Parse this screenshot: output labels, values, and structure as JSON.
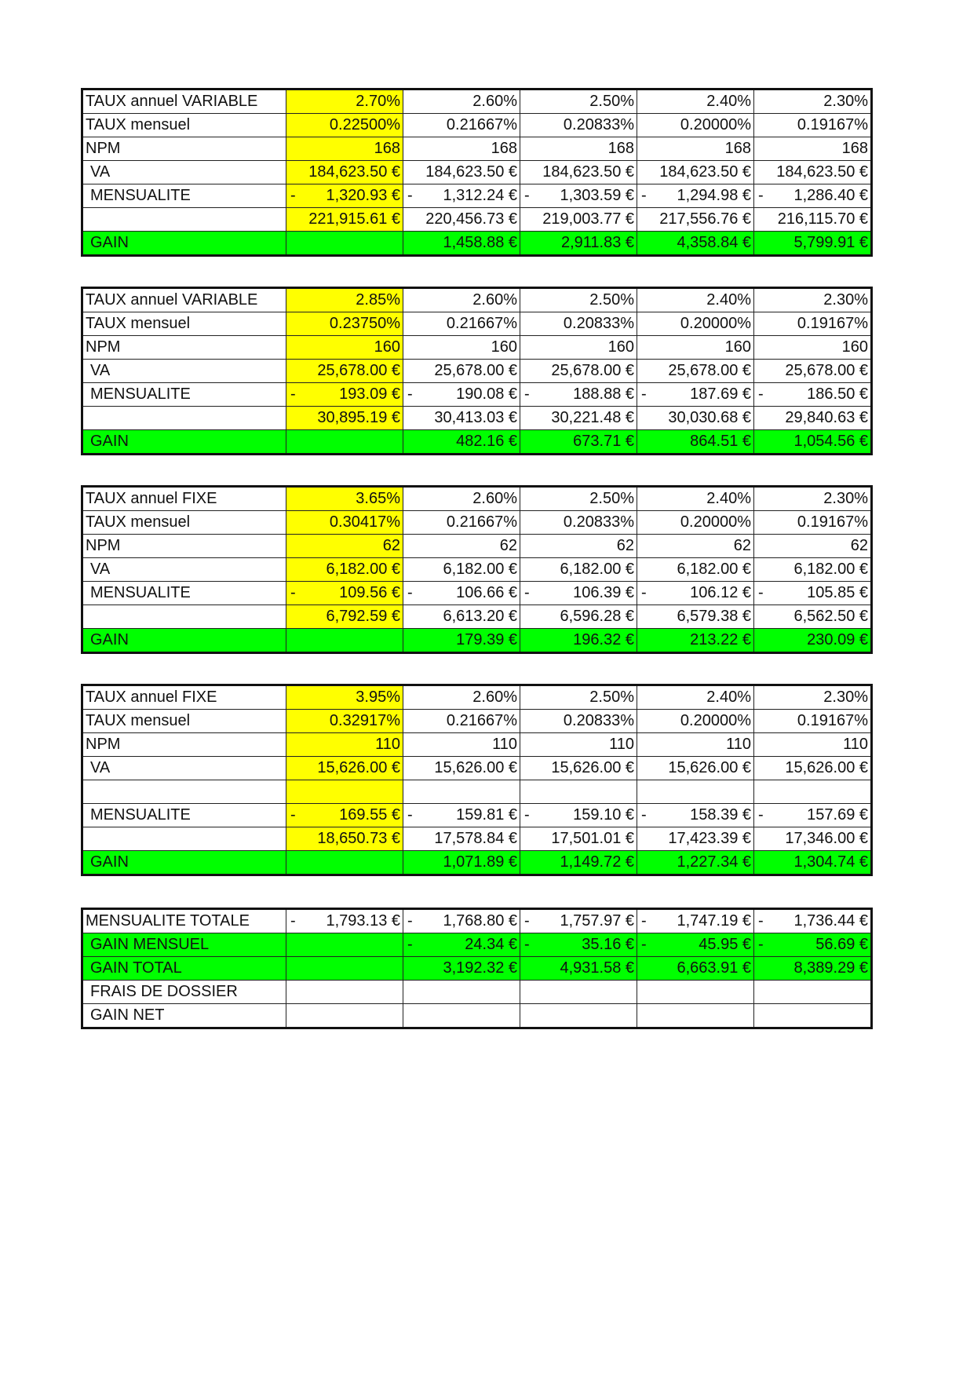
{
  "colors": {
    "highlight_yellow": "#ffff00",
    "gain_green": "#00ff00"
  },
  "blocks": [
    {
      "rows": [
        {
          "label": "TAUX annuel VARIABLE",
          "cells": [
            {
              "v": "2.70%"
            },
            {
              "v": "2.60%"
            },
            {
              "v": "2.50%"
            },
            {
              "v": "2.40%"
            },
            {
              "v": "2.30%"
            }
          ]
        },
        {
          "label": "TAUX mensuel",
          "cells": [
            {
              "v": "0.22500%"
            },
            {
              "v": "0.21667%"
            },
            {
              "v": "0.20833%"
            },
            {
              "v": "0.20000%"
            },
            {
              "v": "0.19167%"
            }
          ]
        },
        {
          "label": "NPM",
          "cells": [
            {
              "v": "168"
            },
            {
              "v": "168"
            },
            {
              "v": "168"
            },
            {
              "v": "168"
            },
            {
              "v": "168"
            }
          ]
        },
        {
          "label": "VA",
          "indent": true,
          "cells": [
            {
              "v": "184,623.50 €"
            },
            {
              "v": "184,623.50 €"
            },
            {
              "v": "184,623.50 €"
            },
            {
              "v": "184,623.50 €"
            },
            {
              "v": "184,623.50 €"
            }
          ]
        },
        {
          "label": "MENSUALITE",
          "indent": true,
          "cells": [
            {
              "m": "-",
              "v": "1,320.93 €"
            },
            {
              "m": "-",
              "v": "1,312.24 €"
            },
            {
              "m": "-",
              "v": "1,303.59 €"
            },
            {
              "m": "-",
              "v": "1,294.98 €"
            },
            {
              "m": "-",
              "v": "1,286.40 €"
            }
          ]
        },
        {
          "label": "",
          "cells": [
            {
              "v": "221,915.61 €"
            },
            {
              "v": "220,456.73 €"
            },
            {
              "v": "219,003.77 €"
            },
            {
              "v": "217,556.76 €"
            },
            {
              "v": "216,115.70 €"
            }
          ]
        },
        {
          "label": "GAIN",
          "indent": true,
          "green": true,
          "cells": [
            {
              "v": ""
            },
            {
              "v": "1,458.88 €"
            },
            {
              "v": "2,911.83 €"
            },
            {
              "v": "4,358.84 €"
            },
            {
              "v": "5,799.91 €"
            }
          ]
        }
      ]
    },
    {
      "rows": [
        {
          "label": "TAUX annuel VARIABLE",
          "cells": [
            {
              "v": "2.85%"
            },
            {
              "v": "2.60%"
            },
            {
              "v": "2.50%"
            },
            {
              "v": "2.40%"
            },
            {
              "v": "2.30%"
            }
          ]
        },
        {
          "label": "TAUX mensuel",
          "cells": [
            {
              "v": "0.23750%"
            },
            {
              "v": "0.21667%"
            },
            {
              "v": "0.20833%"
            },
            {
              "v": "0.20000%"
            },
            {
              "v": "0.19167%"
            }
          ]
        },
        {
          "label": "NPM",
          "cells": [
            {
              "v": "160"
            },
            {
              "v": "160"
            },
            {
              "v": "160"
            },
            {
              "v": "160"
            },
            {
              "v": "160"
            }
          ]
        },
        {
          "label": "VA",
          "indent": true,
          "cells": [
            {
              "v": "25,678.00 €"
            },
            {
              "v": "25,678.00 €"
            },
            {
              "v": "25,678.00 €"
            },
            {
              "v": "25,678.00 €"
            },
            {
              "v": "25,678.00 €"
            }
          ]
        },
        {
          "label": "MENSUALITE",
          "indent": true,
          "cells": [
            {
              "m": "-",
              "v": "193.09 €"
            },
            {
              "m": "-",
              "v": "190.08 €"
            },
            {
              "m": "-",
              "v": "188.88 €"
            },
            {
              "m": "-",
              "v": "187.69 €"
            },
            {
              "m": "-",
              "v": "186.50 €"
            }
          ]
        },
        {
          "label": "",
          "cells": [
            {
              "v": "30,895.19 €"
            },
            {
              "v": "30,413.03 €"
            },
            {
              "v": "30,221.48 €"
            },
            {
              "v": "30,030.68 €"
            },
            {
              "v": "29,840.63 €"
            }
          ]
        },
        {
          "label": "GAIN",
          "indent": true,
          "green": true,
          "cells": [
            {
              "v": ""
            },
            {
              "v": "482.16 €"
            },
            {
              "v": "673.71 €"
            },
            {
              "v": "864.51 €"
            },
            {
              "v": "1,054.56 €"
            }
          ]
        }
      ]
    },
    {
      "rows": [
        {
          "label": "TAUX annuel FIXE",
          "cells": [
            {
              "v": "3.65%"
            },
            {
              "v": "2.60%"
            },
            {
              "v": "2.50%"
            },
            {
              "v": "2.40%"
            },
            {
              "v": "2.30%"
            }
          ]
        },
        {
          "label": "TAUX mensuel",
          "cells": [
            {
              "v": "0.30417%"
            },
            {
              "v": "0.21667%"
            },
            {
              "v": "0.20833%"
            },
            {
              "v": "0.20000%"
            },
            {
              "v": "0.19167%"
            }
          ]
        },
        {
          "label": "NPM",
          "cells": [
            {
              "v": "62"
            },
            {
              "v": "62"
            },
            {
              "v": "62"
            },
            {
              "v": "62"
            },
            {
              "v": "62"
            }
          ]
        },
        {
          "label": "VA",
          "indent": true,
          "cells": [
            {
              "v": "6,182.00 €"
            },
            {
              "v": "6,182.00 €"
            },
            {
              "v": "6,182.00 €"
            },
            {
              "v": "6,182.00 €"
            },
            {
              "v": "6,182.00 €"
            }
          ]
        },
        {
          "label": "MENSUALITE",
          "indent": true,
          "cells": [
            {
              "m": "-",
              "v": "109.56 €"
            },
            {
              "m": "-",
              "v": "106.66 €"
            },
            {
              "m": "-",
              "v": "106.39 €"
            },
            {
              "m": "-",
              "v": "106.12 €"
            },
            {
              "m": "-",
              "v": "105.85 €"
            }
          ]
        },
        {
          "label": "",
          "cells": [
            {
              "v": "6,792.59 €"
            },
            {
              "v": "6,613.20 €"
            },
            {
              "v": "6,596.28 €"
            },
            {
              "v": "6,579.38 €"
            },
            {
              "v": "6,562.50 €"
            }
          ]
        },
        {
          "label": "GAIN",
          "indent": true,
          "green": true,
          "cells": [
            {
              "v": ""
            },
            {
              "v": "179.39 €"
            },
            {
              "v": "196.32 €"
            },
            {
              "v": "213.22 €"
            },
            {
              "v": "230.09 €"
            }
          ]
        }
      ]
    },
    {
      "rows": [
        {
          "label": "TAUX annuel FIXE",
          "cells": [
            {
              "v": "3.95%"
            },
            {
              "v": "2.60%"
            },
            {
              "v": "2.50%"
            },
            {
              "v": "2.40%"
            },
            {
              "v": "2.30%"
            }
          ]
        },
        {
          "label": "TAUX mensuel",
          "cells": [
            {
              "v": "0.32917%"
            },
            {
              "v": "0.21667%"
            },
            {
              "v": "0.20833%"
            },
            {
              "v": "0.20000%"
            },
            {
              "v": "0.19167%"
            }
          ]
        },
        {
          "label": "NPM",
          "cells": [
            {
              "v": "110"
            },
            {
              "v": "110"
            },
            {
              "v": "110"
            },
            {
              "v": "110"
            },
            {
              "v": "110"
            }
          ]
        },
        {
          "label": "VA",
          "indent": true,
          "cells": [
            {
              "v": "15,626.00 €"
            },
            {
              "v": "15,626.00 €"
            },
            {
              "v": "15,626.00 €"
            },
            {
              "v": "15,626.00 €"
            },
            {
              "v": "15,626.00 €"
            }
          ]
        },
        {
          "label": "",
          "cells": [
            {
              "v": ""
            },
            {
              "v": ""
            },
            {
              "v": ""
            },
            {
              "v": ""
            },
            {
              "v": ""
            }
          ]
        },
        {
          "label": "MENSUALITE",
          "indent": true,
          "cells": [
            {
              "m": "-",
              "v": "169.55 €"
            },
            {
              "m": "-",
              "v": "159.81 €"
            },
            {
              "m": "-",
              "v": "159.10 €"
            },
            {
              "m": "-",
              "v": "158.39 €"
            },
            {
              "m": "-",
              "v": "157.69 €"
            }
          ]
        },
        {
          "label": "",
          "cells": [
            {
              "v": "18,650.73 €"
            },
            {
              "v": "17,578.84 €"
            },
            {
              "v": "17,501.01 €"
            },
            {
              "v": "17,423.39 €"
            },
            {
              "v": "17,346.00 €"
            }
          ]
        },
        {
          "label": "GAIN",
          "indent": true,
          "green": true,
          "cells": [
            {
              "v": ""
            },
            {
              "v": "1,071.89 €"
            },
            {
              "v": "1,149.72 €"
            },
            {
              "v": "1,227.34 €"
            },
            {
              "v": "1,304.74 €"
            }
          ]
        }
      ]
    },
    {
      "summary": true,
      "rows": [
        {
          "label": "MENSUALITE TOTALE",
          "cells": [
            {
              "m": "-",
              "v": "1,793.13 €"
            },
            {
              "m": "-",
              "v": "1,768.80 €"
            },
            {
              "m": "-",
              "v": "1,757.97 €"
            },
            {
              "m": "-",
              "v": "1,747.19 €"
            },
            {
              "m": "-",
              "v": "1,736.44 €"
            }
          ]
        },
        {
          "label": "GAIN MENSUEL",
          "indent": true,
          "green": true,
          "cells": [
            {
              "v": ""
            },
            {
              "m": "-",
              "v": "24.34 €"
            },
            {
              "m": "-",
              "v": "35.16 €"
            },
            {
              "m": "-",
              "v": "45.95 €"
            },
            {
              "m": "-",
              "v": "56.69 €"
            }
          ]
        },
        {
          "label": "GAIN TOTAL",
          "indent": true,
          "green": true,
          "cells": [
            {
              "v": ""
            },
            {
              "v": "3,192.32 €"
            },
            {
              "v": "4,931.58 €"
            },
            {
              "v": "6,663.91 €"
            },
            {
              "v": "8,389.29 €"
            }
          ]
        },
        {
          "label": "FRAIS DE DOSSIER",
          "indent": true,
          "cells": [
            {
              "v": ""
            },
            {
              "v": ""
            },
            {
              "v": ""
            },
            {
              "v": ""
            },
            {
              "v": ""
            }
          ]
        },
        {
          "label": "GAIN NET",
          "indent": true,
          "cells": [
            {
              "v": ""
            },
            {
              "v": ""
            },
            {
              "v": ""
            },
            {
              "v": ""
            },
            {
              "v": ""
            }
          ]
        }
      ]
    }
  ]
}
